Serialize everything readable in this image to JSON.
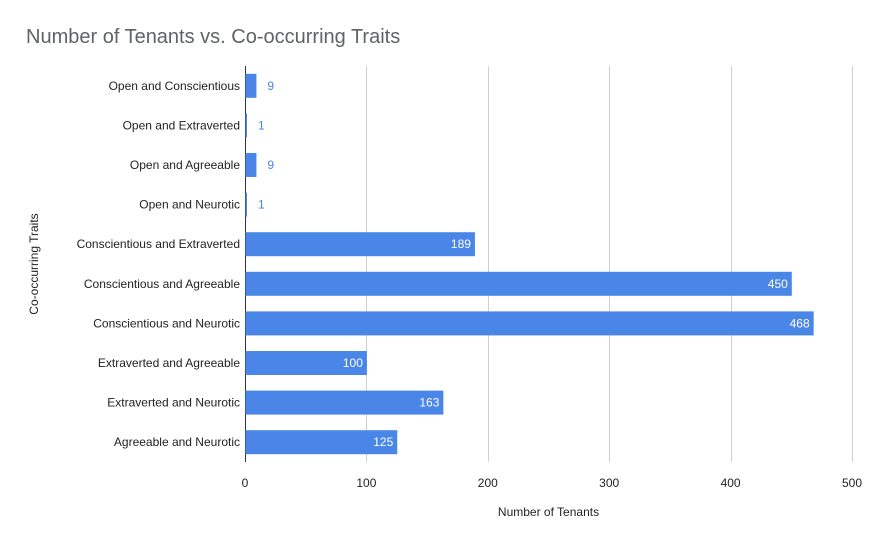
{
  "chart_data": {
    "type": "bar",
    "orientation": "horizontal",
    "title": "Number of Tenants vs. Co-occurring Traits",
    "xlabel": "Number of Tenants",
    "ylabel": "Co-occurring Traits",
    "categories": [
      "Open and Conscientious",
      "Open and Extraverted",
      "Open and Agreeable",
      "Open and Neurotic",
      "Conscientious and Extraverted",
      "Conscientious and Agreeable",
      "Conscientious and Neurotic",
      "Extraverted and Agreeable",
      "Extraverted and Neurotic",
      "Agreeable and Neurotic"
    ],
    "values": [
      9,
      1,
      9,
      1,
      189,
      450,
      468,
      100,
      163,
      125
    ],
    "xlim": [
      0,
      500
    ],
    "xticks": [
      0,
      100,
      200,
      300,
      400,
      500
    ],
    "grid": "vertical",
    "legend": "none",
    "bar_color": "#4a86e8"
  }
}
